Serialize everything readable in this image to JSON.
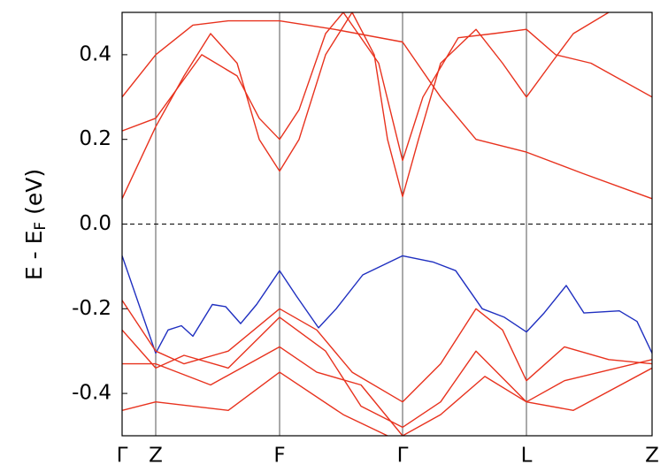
{
  "chart_data": {
    "type": "line",
    "ylabel_parts": [
      "E - E",
      "F",
      " (eV)"
    ],
    "xlim": [
      0,
      5.99
    ],
    "ylim": [
      -0.5,
      0.5
    ],
    "xticks": [
      {
        "value": 0,
        "label": "Γ"
      },
      {
        "value": 0.38,
        "label": "Z"
      },
      {
        "value": 1.78,
        "label": "F"
      },
      {
        "value": 3.17,
        "label": "Γ"
      },
      {
        "value": 4.57,
        "label": "L"
      },
      {
        "value": 5.99,
        "label": "Z"
      }
    ],
    "yticks": [
      -0.4,
      -0.2,
      {
        "value": 0,
        "label": "0.0"
      },
      0.2,
      0.4
    ],
    "vertical_lines_at_xticks": true,
    "fermi_level": 0,
    "series": [
      {
        "color": "#1f2fc0",
        "x": [
          0,
          0.38,
          0.52,
          0.67,
          0.8,
          1.02,
          1.17,
          1.34,
          1.52,
          1.78,
          1.97,
          2.22,
          2.42,
          2.72,
          3.17,
          3.52,
          3.77,
          4.07,
          4.32,
          4.57,
          4.77,
          5.02,
          5.22,
          5.62,
          5.82,
          5.99
        ],
        "values": [
          -0.075,
          -0.305,
          -0.25,
          -0.24,
          -0.265,
          -0.19,
          -0.195,
          -0.235,
          -0.19,
          -0.11,
          -0.17,
          -0.245,
          -0.2,
          -0.12,
          -0.075,
          -0.09,
          -0.11,
          -0.2,
          -0.22,
          -0.255,
          -0.21,
          -0.145,
          -0.21,
          -0.205,
          -0.23,
          -0.305
        ]
      },
      {
        "color": "#e8321e",
        "x": [
          0,
          0.38,
          0.7,
          1.0,
          1.3,
          1.55,
          1.78,
          2.0,
          2.3,
          2.6,
          2.85,
          3.0,
          3.17,
          3.35,
          3.6,
          4.0,
          4.3,
          4.57,
          4.85,
          5.1,
          5.5
        ],
        "values": [
          0.06,
          0.23,
          0.35,
          0.45,
          0.38,
          0.2,
          0.125,
          0.2,
          0.4,
          0.5,
          0.4,
          0.2,
          0.065,
          0.2,
          0.38,
          0.46,
          0.38,
          0.3,
          0.38,
          0.45,
          0.5
        ]
      },
      {
        "color": "#e8321e",
        "x": [
          0,
          0.38,
          0.9,
          1.3,
          1.55,
          1.78,
          2.0,
          2.3,
          2.5,
          2.9,
          3.17,
          3.4,
          3.8,
          4.2,
          4.57,
          4.9,
          5.3,
          5.99
        ],
        "values": [
          0.22,
          0.25,
          0.4,
          0.35,
          0.25,
          0.2,
          0.27,
          0.45,
          0.5,
          0.38,
          0.15,
          0.3,
          0.44,
          0.45,
          0.46,
          0.4,
          0.38,
          0.3
        ]
      },
      {
        "color": "#e8321e",
        "x": [
          0,
          0.38,
          0.8,
          1.2,
          1.78,
          2.4,
          3.17,
          3.6,
          4.0,
          4.57,
          5.2,
          5.99
        ],
        "values": [
          0.3,
          0.4,
          0.47,
          0.48,
          0.48,
          0.46,
          0.43,
          0.3,
          0.2,
          0.17,
          0.12,
          0.06
        ]
      },
      {
        "color": "#e8321e",
        "x": [
          0,
          0.38,
          0.7,
          1.2,
          1.78,
          2.2,
          2.6,
          3.17,
          3.6,
          4.0,
          4.3,
          4.57,
          5.0,
          5.5,
          5.99
        ],
        "values": [
          -0.18,
          -0.3,
          -0.33,
          -0.3,
          -0.2,
          -0.25,
          -0.35,
          -0.42,
          -0.33,
          -0.2,
          -0.25,
          -0.37,
          -0.29,
          -0.32,
          -0.33
        ]
      },
      {
        "color": "#e8321e",
        "x": [
          0,
          0.38,
          0.7,
          1.2,
          1.78,
          2.3,
          2.7,
          3.17,
          3.6,
          4.0,
          4.57,
          5.0,
          5.99
        ],
        "values": [
          -0.25,
          -0.34,
          -0.31,
          -0.34,
          -0.22,
          -0.3,
          -0.43,
          -0.48,
          -0.42,
          -0.3,
          -0.42,
          -0.37,
          -0.32
        ]
      },
      {
        "color": "#e8321e",
        "x": [
          0,
          0.38,
          1.0,
          1.78,
          2.2,
          2.7,
          3.17,
          3.6,
          4.1,
          4.57,
          5.1,
          5.99
        ],
        "values": [
          -0.33,
          -0.33,
          -0.38,
          -0.29,
          -0.35,
          -0.38,
          -0.5,
          -0.45,
          -0.36,
          -0.42,
          -0.44,
          -0.34
        ]
      },
      {
        "color": "#e8321e",
        "x": [
          0,
          0.38,
          1.2,
          1.78,
          2.5,
          3.0
        ],
        "values": [
          -0.44,
          -0.42,
          -0.44,
          -0.35,
          -0.45,
          -0.5
        ]
      }
    ]
  }
}
